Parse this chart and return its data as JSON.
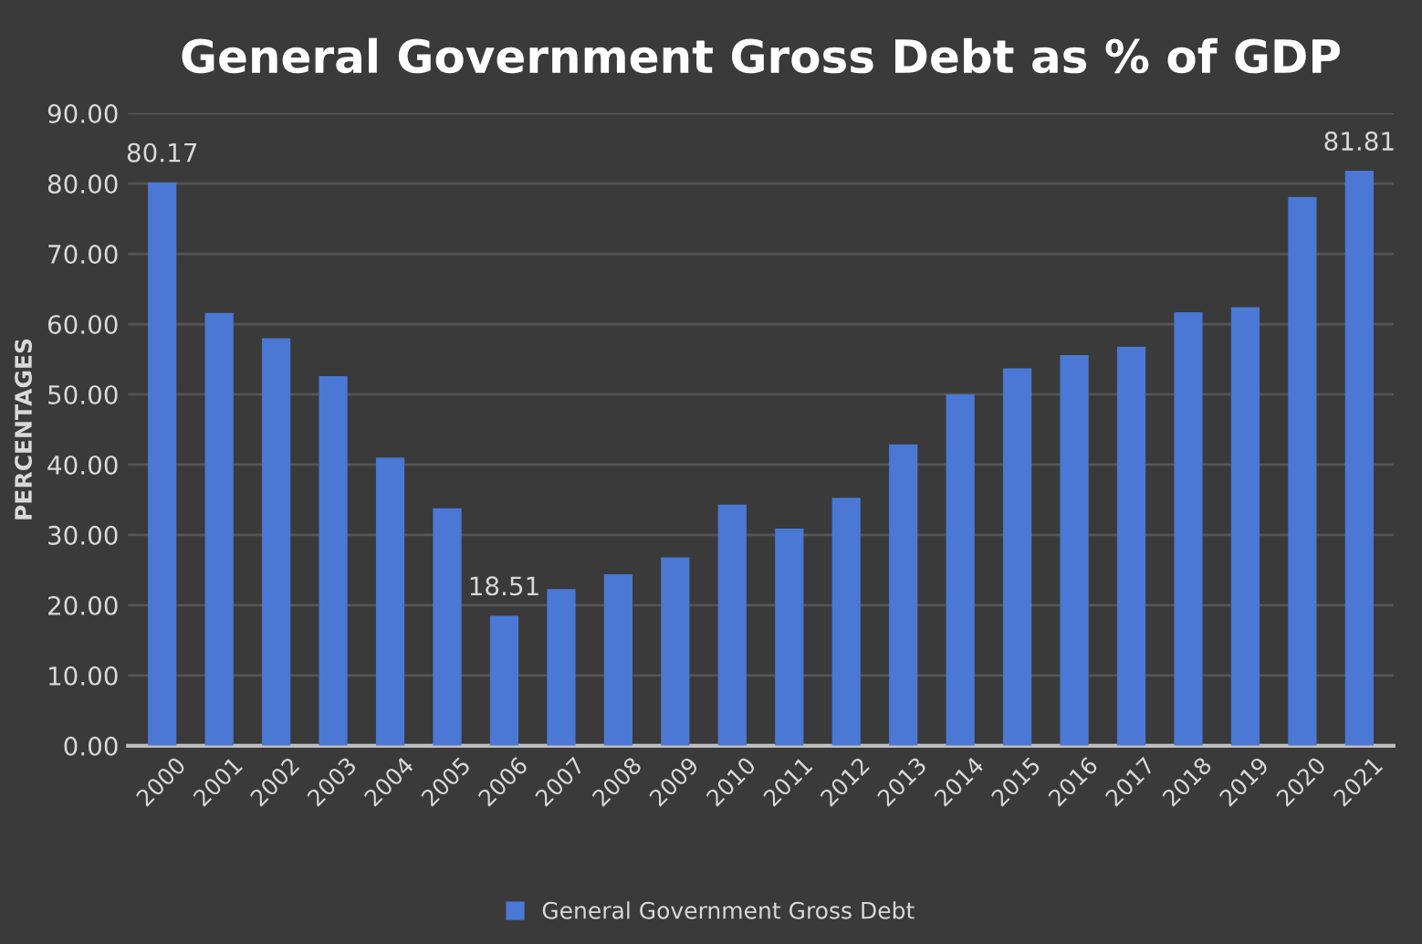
{
  "chart_data": {
    "type": "bar",
    "title": "General Government Gross Debt as % of GDP",
    "ylabel": "PERCENTAGES",
    "categories": [
      "2000",
      "2001",
      "2002",
      "2003",
      "2004",
      "2005",
      "2006",
      "2007",
      "2008",
      "2009",
      "2010",
      "2011",
      "2012",
      "2013",
      "2014",
      "2015",
      "2016",
      "2017",
      "2018",
      "2019",
      "2020",
      "2021"
    ],
    "series": [
      {
        "name": "General Government Gross Debt",
        "color": "#4a78d4",
        "values": [
          80.17,
          61.6,
          58.0,
          52.6,
          41.0,
          33.8,
          18.51,
          22.3,
          24.4,
          26.8,
          34.3,
          30.9,
          35.3,
          42.9,
          50.0,
          53.7,
          55.6,
          56.8,
          61.7,
          62.4,
          78.1,
          81.81
        ],
        "value_labels": [
          "80.17",
          null,
          null,
          null,
          null,
          null,
          "18.51",
          null,
          null,
          null,
          null,
          null,
          null,
          null,
          null,
          null,
          null,
          null,
          null,
          null,
          null,
          "81.81"
        ]
      }
    ],
    "ylim": [
      0,
      90
    ],
    "yticks": [
      {
        "value": 0,
        "label": "0.00"
      },
      {
        "value": 10,
        "label": "10.00"
      },
      {
        "value": 20,
        "label": "20.00"
      },
      {
        "value": 30,
        "label": "30.00"
      },
      {
        "value": 40,
        "label": "40.00"
      },
      {
        "value": 50,
        "label": "50.00"
      },
      {
        "value": 60,
        "label": "60.00"
      },
      {
        "value": 70,
        "label": "70.00"
      },
      {
        "value": 80,
        "label": "80.00"
      },
      {
        "value": 90,
        "label": "90.00"
      }
    ],
    "grid": "y",
    "legend": "bottom"
  }
}
